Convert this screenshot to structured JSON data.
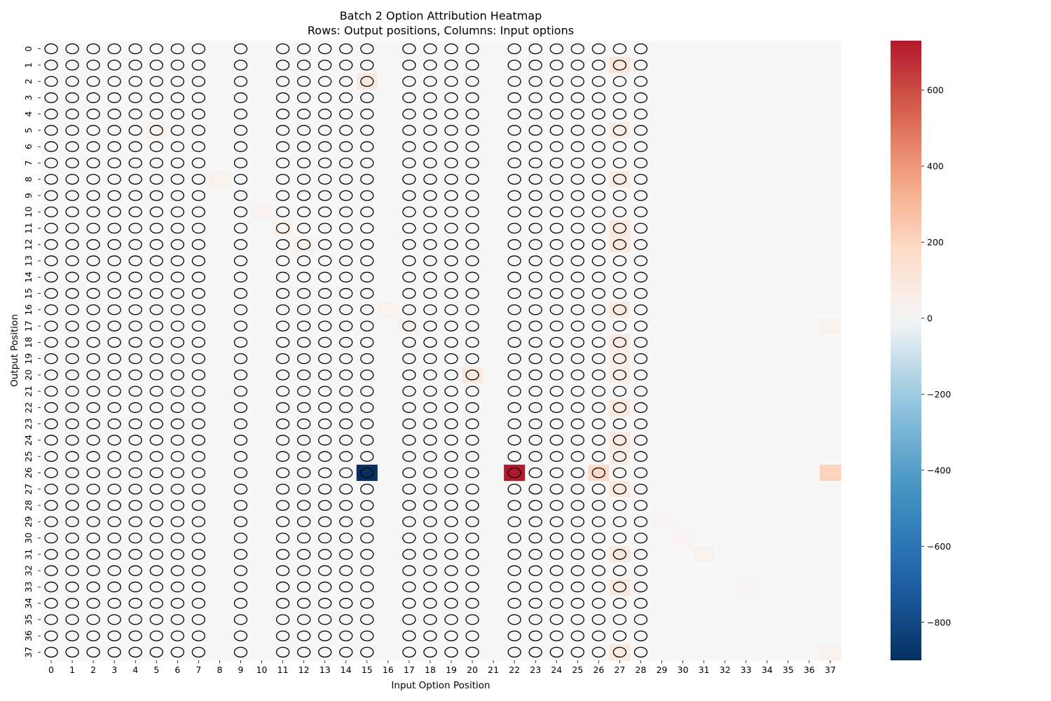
{
  "chart_data": {
    "type": "heatmap",
    "title": "Batch 2 Option Attribution Heatmap",
    "subtitle": "Rows: Output positions, Columns: Input options",
    "xlabel": "Input Option Position",
    "ylabel": "Output Position",
    "x_ticks": [
      0,
      1,
      2,
      3,
      4,
      5,
      6,
      7,
      8,
      9,
      10,
      11,
      12,
      13,
      14,
      15,
      16,
      17,
      18,
      19,
      20,
      21,
      22,
      23,
      24,
      25,
      26,
      27,
      28,
      29,
      30,
      31,
      32,
      33,
      34,
      35,
      36,
      37
    ],
    "y_ticks": [
      0,
      1,
      2,
      3,
      4,
      5,
      6,
      7,
      8,
      9,
      10,
      11,
      12,
      13,
      14,
      15,
      16,
      17,
      18,
      19,
      20,
      21,
      22,
      23,
      24,
      25,
      26,
      27,
      28,
      29,
      30,
      31,
      32,
      33,
      34,
      35,
      36,
      37
    ],
    "colormap": "RdBu_r",
    "vmin": -900,
    "vmax": 730,
    "colorbar_ticks": [
      600,
      400,
      200,
      0,
      -200,
      -400,
      -600,
      -800
    ],
    "marked_columns": [
      0,
      1,
      2,
      3,
      4,
      5,
      6,
      7,
      9,
      11,
      12,
      13,
      14,
      15,
      17,
      18,
      19,
      20,
      22,
      23,
      24,
      25,
      26,
      27,
      28
    ],
    "marker": "ellipse",
    "default_value": 0,
    "nonzero_cells": [
      {
        "row": 1,
        "col": 27,
        "value": 110
      },
      {
        "row": 2,
        "col": 15,
        "value": 90
      },
      {
        "row": 5,
        "col": 5,
        "value": 40
      },
      {
        "row": 5,
        "col": 27,
        "value": 70
      },
      {
        "row": 8,
        "col": 8,
        "value": 30
      },
      {
        "row": 8,
        "col": 27,
        "value": 80
      },
      {
        "row": 10,
        "col": 10,
        "value": 25
      },
      {
        "row": 11,
        "col": 11,
        "value": 40
      },
      {
        "row": 11,
        "col": 27,
        "value": 90
      },
      {
        "row": 12,
        "col": 12,
        "value": 35
      },
      {
        "row": 12,
        "col": 27,
        "value": 90
      },
      {
        "row": 16,
        "col": 16,
        "value": 40
      },
      {
        "row": 16,
        "col": 27,
        "value": 80
      },
      {
        "row": 17,
        "col": 17,
        "value": 30
      },
      {
        "row": 17,
        "col": 37,
        "value": 30
      },
      {
        "row": 18,
        "col": 27,
        "value": 80
      },
      {
        "row": 19,
        "col": 27,
        "value": 60
      },
      {
        "row": 20,
        "col": 20,
        "value": 90
      },
      {
        "row": 20,
        "col": 27,
        "value": 60
      },
      {
        "row": 22,
        "col": 27,
        "value": 90
      },
      {
        "row": 24,
        "col": 27,
        "value": 90
      },
      {
        "row": 25,
        "col": 27,
        "value": 60
      },
      {
        "row": 26,
        "col": 15,
        "value": -900
      },
      {
        "row": 26,
        "col": 22,
        "value": 730
      },
      {
        "row": 26,
        "col": 26,
        "value": 180
      },
      {
        "row": 26,
        "col": 37,
        "value": 210
      },
      {
        "row": 27,
        "col": 27,
        "value": 90
      },
      {
        "row": 29,
        "col": 29,
        "value": 20
      },
      {
        "row": 30,
        "col": 30,
        "value": 25
      },
      {
        "row": 31,
        "col": 27,
        "value": 90
      },
      {
        "row": 31,
        "col": 31,
        "value": 35
      },
      {
        "row": 33,
        "col": 27,
        "value": 90
      },
      {
        "row": 33,
        "col": 33,
        "value": 15
      },
      {
        "row": 37,
        "col": 27,
        "value": 90
      },
      {
        "row": 37,
        "col": 37,
        "value": 40
      }
    ]
  }
}
